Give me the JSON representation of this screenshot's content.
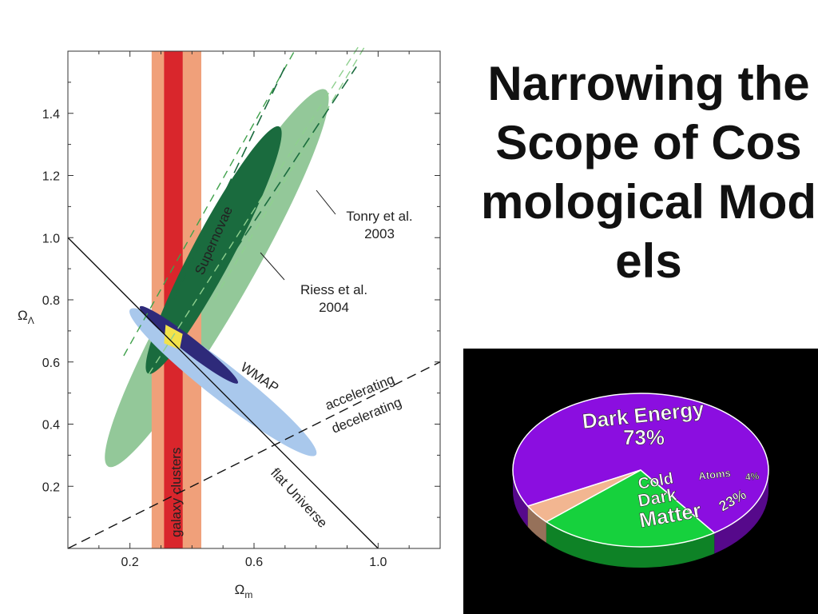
{
  "slide": {
    "title": "Narrowing the Scope of Cosmological Models"
  },
  "chart_data": [
    {
      "type": "scatter",
      "title": "",
      "xlabel": "Ω",
      "xlabel_sub": "m",
      "ylabel": "Ω",
      "ylabel_sub": "Λ",
      "xlim": [
        0.0,
        1.2
      ],
      "ylim": [
        0.0,
        1.6
      ],
      "x_ticks": [
        0.2,
        0.6,
        1.0
      ],
      "x_tick_labels": [
        "0.2",
        "0.6",
        "1.0"
      ],
      "y_ticks": [
        0.2,
        0.4,
        0.6,
        0.8,
        1.0,
        1.2,
        1.4
      ],
      "y_tick_labels": [
        "0.2",
        "0.4",
        "0.6",
        "0.8",
        "1.0",
        "1.2",
        "1.4"
      ],
      "grid": false,
      "regions": {
        "galaxy_clusters": {
          "label": "galaxy clusters",
          "x_outer": [
            0.27,
            0.43
          ],
          "x_inner": [
            0.31,
            0.37
          ],
          "outer_color": "#f0a07a",
          "inner_color": "#d9262c"
        },
        "supernovae": {
          "label": "Supernovae",
          "outer_color": "#93c899",
          "inner_color": "#1a6b3e"
        },
        "wmap": {
          "label": "WMAP",
          "outer_color": "#a9c8ec",
          "inner_color": "#2e2a7a"
        },
        "overlap": {
          "color": "#f2e24b"
        }
      },
      "lines": [
        {
          "label": "flat Universe",
          "points": [
            [
              0.0,
              1.0
            ],
            [
              1.0,
              0.0
            ]
          ],
          "style": "solid"
        },
        {
          "label_above": "accelerating",
          "label_below": "decelerating",
          "points": [
            [
              0.0,
              0.0
            ],
            [
              1.2,
              0.6
            ]
          ],
          "style": "dashed"
        }
      ],
      "annotations": [
        {
          "text_lines": [
            "Tonry et al.",
            "2003"
          ]
        },
        {
          "text_lines": [
            "Riess et al.",
            "2004"
          ]
        }
      ]
    },
    {
      "type": "pie",
      "title": "",
      "slices": [
        {
          "label": "Dark Energy",
          "value": 73,
          "value_label": "73%",
          "color": "#8b0ee0"
        },
        {
          "label": "Cold Dark Matter",
          "label_lines": [
            "Cold",
            "Dark",
            "Matter"
          ],
          "value": 23,
          "value_label": "23%",
          "color": "#16d13d"
        },
        {
          "label": "Atoms",
          "value": 4,
          "value_label": "4%",
          "color": "#f2b691"
        }
      ]
    }
  ]
}
